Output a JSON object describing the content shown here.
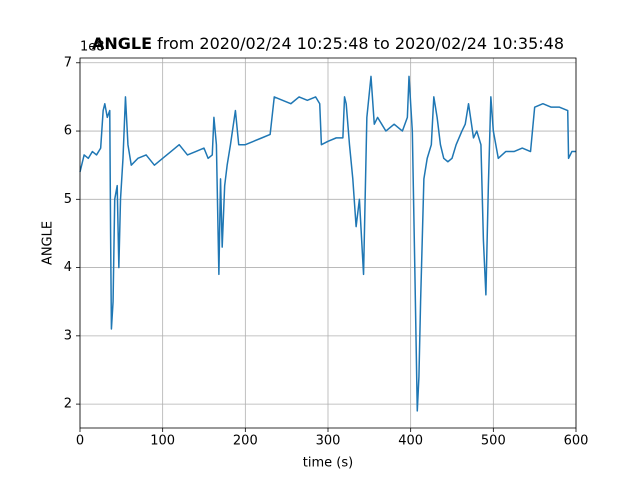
{
  "chart_data": {
    "type": "line",
    "title": {
      "bold": "ANGLE",
      "rest": "from 2020/02/24 10:25:48 to 2020/02/24 10:35:48"
    },
    "xlabel": "time (s)",
    "ylabel": "ANGLE",
    "offset_text": "1e8",
    "x": [
      0,
      5,
      10,
      15,
      20,
      25,
      28,
      30,
      33,
      36,
      37,
      38,
      40,
      42,
      45,
      47,
      49,
      52,
      55,
      58,
      62,
      70,
      80,
      90,
      100,
      110,
      120,
      130,
      140,
      150,
      155,
      160,
      162,
      165,
      168,
      170,
      172,
      175,
      178,
      182,
      188,
      192,
      200,
      210,
      220,
      230,
      235,
      245,
      255,
      265,
      275,
      285,
      290,
      292,
      300,
      310,
      318,
      320,
      322,
      326,
      330,
      334,
      338,
      343,
      347,
      352,
      356,
      360,
      370,
      380,
      390,
      396,
      398,
      402,
      405,
      408,
      410,
      412,
      416,
      420,
      425,
      428,
      432,
      436,
      440,
      445,
      450,
      455,
      462,
      466,
      470,
      476,
      480,
      485,
      488,
      491,
      494,
      497,
      500,
      506,
      515,
      525,
      535,
      545,
      550,
      560,
      570,
      580,
      590,
      591,
      595,
      600
    ],
    "series": [
      {
        "name": "ANGLE",
        "color": "#1f77b4",
        "values": [
          5.4,
          5.65,
          5.6,
          5.7,
          5.65,
          5.75,
          6.3,
          6.4,
          6.2,
          6.3,
          4.5,
          3.1,
          3.5,
          5.0,
          5.2,
          4.0,
          5.0,
          5.6,
          6.5,
          5.8,
          5.5,
          5.6,
          5.65,
          5.5,
          5.6,
          5.7,
          5.8,
          5.65,
          5.7,
          5.75,
          5.6,
          5.65,
          6.2,
          5.8,
          3.9,
          5.3,
          4.3,
          5.2,
          5.5,
          5.8,
          6.3,
          5.8,
          5.8,
          5.85,
          5.9,
          5.95,
          6.5,
          6.45,
          6.4,
          6.5,
          6.45,
          6.5,
          6.4,
          5.8,
          5.85,
          5.9,
          5.9,
          6.5,
          6.4,
          5.8,
          5.3,
          4.6,
          5.0,
          3.9,
          6.2,
          6.8,
          6.1,
          6.2,
          6.0,
          6.1,
          6.0,
          6.2,
          6.8,
          6.0,
          4.0,
          1.9,
          2.4,
          3.5,
          5.3,
          5.6,
          5.8,
          6.5,
          6.2,
          5.8,
          5.6,
          5.55,
          5.6,
          5.8,
          6.0,
          6.1,
          6.4,
          5.9,
          6.0,
          5.8,
          4.4,
          3.6,
          5.2,
          6.5,
          6.0,
          5.6,
          5.7,
          5.7,
          5.75,
          5.7,
          6.35,
          6.4,
          6.35,
          6.35,
          6.3,
          5.6,
          5.7,
          5.7
        ]
      }
    ],
    "xlim": [
      0,
      600
    ],
    "ylim": [
      1.65,
      7.07
    ],
    "xticks": [
      0,
      100,
      200,
      300,
      400,
      500,
      600
    ],
    "yticks": [
      2,
      3,
      4,
      5,
      6,
      7
    ],
    "grid": true
  }
}
